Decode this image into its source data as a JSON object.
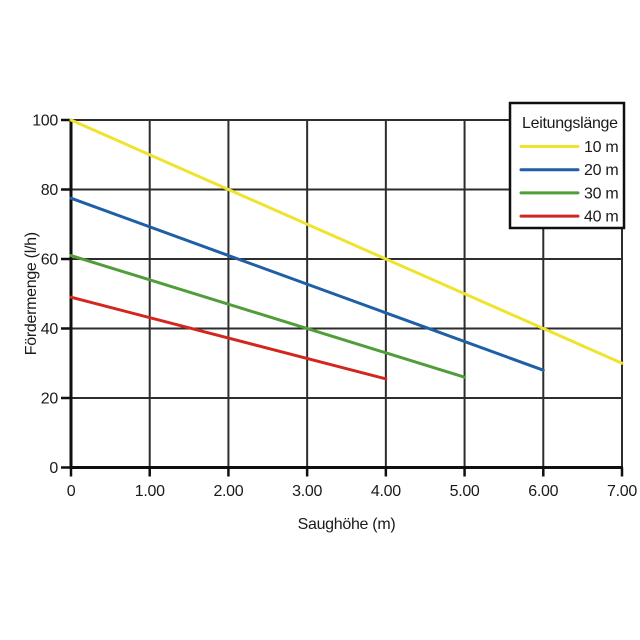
{
  "chart_data": {
    "type": "line",
    "title": "",
    "xlabel": "Saughöhe (m)",
    "ylabel": "Fördermenge (l/h)",
    "xlim": [
      0,
      7
    ],
    "ylim": [
      0,
      100
    ],
    "xticks": [
      0,
      1,
      2,
      3,
      4,
      5,
      6,
      7
    ],
    "xtick_labels": [
      "0",
      "1.00",
      "2.00",
      "3.00",
      "4.00",
      "5.00",
      "6.00",
      "7.00"
    ],
    "yticks": [
      0,
      20,
      40,
      60,
      80,
      100
    ],
    "ytick_labels": [
      "0",
      "20",
      "40",
      "60",
      "80",
      "100"
    ],
    "grid": true,
    "legend": {
      "title": "Leitungslänge",
      "position": "top-right",
      "entries": [
        "10 m",
        "20 m",
        "30 m",
        "40 m"
      ]
    },
    "series": [
      {
        "name": "10 m",
        "color": "#efe32e",
        "points": [
          [
            0,
            100
          ],
          [
            7,
            30
          ]
        ]
      },
      {
        "name": "20 m",
        "color": "#1e5fa7",
        "points": [
          [
            0,
            77.5
          ],
          [
            6,
            28
          ]
        ]
      },
      {
        "name": "30 m",
        "color": "#4f9e3a",
        "points": [
          [
            0,
            61
          ],
          [
            5,
            26
          ]
        ]
      },
      {
        "name": "40 m",
        "color": "#d1271f",
        "points": [
          [
            0,
            49
          ],
          [
            4,
            25.5
          ]
        ]
      }
    ],
    "colors": {
      "background": "#ffffff",
      "grid": "#2d2d2d",
      "axis": "#0f0f0f",
      "text": "#1a1a1a",
      "legend_border": "#0f0f0f",
      "legend_fill": "#ffffff"
    }
  }
}
